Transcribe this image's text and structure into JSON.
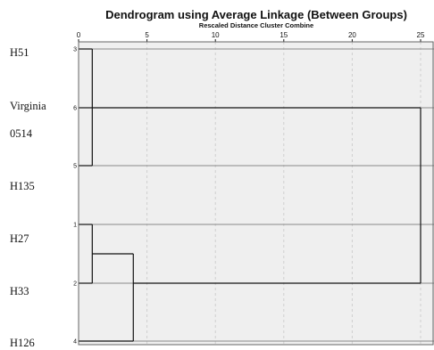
{
  "chart_data": {
    "type": "dendrogram",
    "title": "Dendrogram using Average Linkage (Between Groups)",
    "xlabel": "Rescaled Distance Cluster Combine",
    "xlim": [
      0,
      25
    ],
    "xticks": [
      0,
      5,
      10,
      15,
      20,
      25
    ],
    "grid": true,
    "leaves": [
      {
        "case": "3",
        "label": "H51"
      },
      {
        "case": "6",
        "label": "Virginia"
      },
      {
        "case": "5",
        "label": "0514"
      },
      {
        "case": "1",
        "label": "H135"
      },
      {
        "case": "2",
        "label": "H27"
      },
      {
        "case": "4",
        "label": "H33"
      }
    ],
    "extra_labels": [
      "H126"
    ],
    "merges": [
      {
        "members": [
          "3",
          "6",
          "5"
        ],
        "distance": 1
      },
      {
        "members": [
          "1",
          "2"
        ],
        "distance": 1
      },
      {
        "members": [
          "1",
          "2",
          "4"
        ],
        "distance": 4
      },
      {
        "members": [
          "3",
          "6",
          "5",
          "1",
          "2",
          "4"
        ],
        "distance": 25
      }
    ]
  },
  "colors": {
    "plot_background": "#efefef",
    "line": "#111111",
    "grid": "#cfcfcf"
  }
}
